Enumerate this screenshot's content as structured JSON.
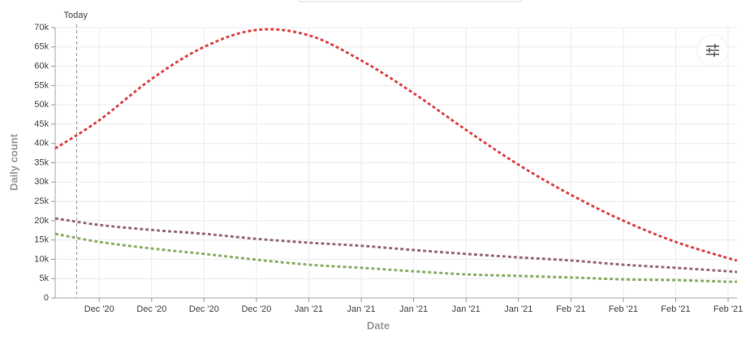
{
  "chart_data": {
    "type": "line",
    "x_label": "Date",
    "y_label": "Daily count",
    "annotation": {
      "label": "Today",
      "x": -0.43
    },
    "x": [
      -0.84,
      0,
      1,
      2,
      3,
      4,
      5,
      6,
      7,
      8,
      9,
      10,
      11,
      12,
      12.17
    ],
    "xlim": [
      -0.84,
      12.17
    ],
    "xticks": [
      {
        "value": 0,
        "label": "Dec '20"
      },
      {
        "value": 1,
        "label": "Dec '20"
      },
      {
        "value": 2,
        "label": "Dec '20"
      },
      {
        "value": 3,
        "label": "Dec '20"
      },
      {
        "value": 4,
        "label": "Jan '21"
      },
      {
        "value": 5,
        "label": "Jan '21"
      },
      {
        "value": 6,
        "label": "Jan '21"
      },
      {
        "value": 7,
        "label": "Jan '21"
      },
      {
        "value": 8,
        "label": "Jan '21"
      },
      {
        "value": 9,
        "label": "Feb '21"
      },
      {
        "value": 10,
        "label": "Feb '21"
      },
      {
        "value": 11,
        "label": "Feb '21"
      },
      {
        "value": 12,
        "label": "Feb '21"
      }
    ],
    "ylim": [
      0,
      70000
    ],
    "yticks": [
      0,
      {
        "value": 5000,
        "label": "5k"
      },
      {
        "value": 10000,
        "label": "10k"
      },
      {
        "value": 15000,
        "label": "15k"
      },
      {
        "value": 20000,
        "label": "20k"
      },
      {
        "value": 25000,
        "label": "25k"
      },
      {
        "value": 30000,
        "label": "30k"
      },
      {
        "value": 35000,
        "label": "35k"
      },
      {
        "value": 40000,
        "label": "40k"
      },
      {
        "value": 45000,
        "label": "45k"
      },
      {
        "value": 50000,
        "label": "50k"
      },
      {
        "value": 55000,
        "label": "55k"
      },
      {
        "value": 60000,
        "label": "60k"
      },
      {
        "value": 65000,
        "label": "65k"
      },
      {
        "value": 70000,
        "label": "70k"
      }
    ],
    "grid": true,
    "series": [
      {
        "color": "#e0484c",
        "values": [
          38700,
          46000,
          56700,
          65000,
          69400,
          68000,
          61500,
          53000,
          43500,
          34500,
          26700,
          20000,
          14500,
          10300,
          9700
        ]
      },
      {
        "color": "#9a6e7e",
        "values": [
          20600,
          18900,
          17600,
          16600,
          15300,
          14300,
          13500,
          12400,
          11400,
          10500,
          9700,
          8600,
          7800,
          6900,
          6700
        ]
      },
      {
        "color": "#8fb06a",
        "values": [
          16600,
          14500,
          12800,
          11400,
          9900,
          8600,
          7800,
          6900,
          6100,
          5700,
          5300,
          4800,
          4600,
          4200,
          4200
        ]
      }
    ]
  }
}
